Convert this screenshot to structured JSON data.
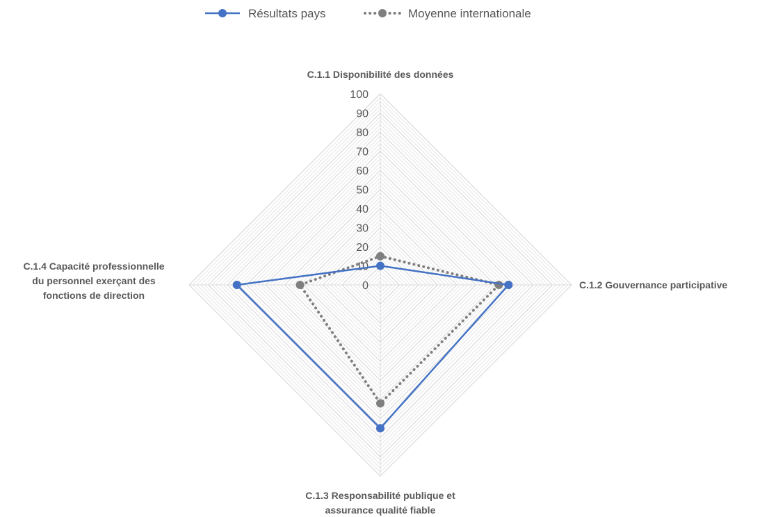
{
  "chart_data": {
    "type": "radar",
    "title": "",
    "axes": [
      [
        "C.1.1 Disponibilité des données"
      ],
      [
        "C.1.2 Gouvernance participative"
      ],
      [
        "C.1.3 Responsabilité publique et",
        "assurance qualité fiable"
      ],
      [
        "C.1.4 Capacité professionnelle",
        "du personnel exerçant des",
        "fonctions de direction"
      ]
    ],
    "rlim": [
      0,
      100
    ],
    "ticks": [
      0,
      10,
      20,
      30,
      40,
      50,
      60,
      70,
      80,
      90,
      100
    ],
    "grid": true,
    "legend_position": "top",
    "series": [
      {
        "name": "Résultats pays",
        "values": [
          10,
          67,
          75,
          75
        ],
        "color": "#4472c4",
        "style": "solid"
      },
      {
        "name": "Moyenne internationale",
        "values": [
          15,
          62,
          62,
          42
        ],
        "color": "#7f7f7f",
        "style": "dotted"
      }
    ]
  }
}
